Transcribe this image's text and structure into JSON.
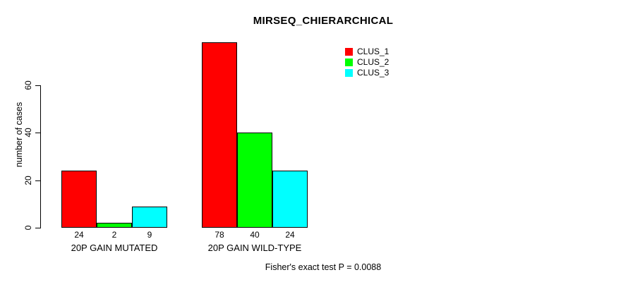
{
  "chart_data": {
    "type": "bar",
    "title": "MIRSEQ_CHIERARCHICAL",
    "ylabel": "number of cases",
    "xlabel": "",
    "categories": [
      "20P GAIN MUTATED",
      "20P GAIN WILD-TYPE"
    ],
    "series": [
      {
        "name": "CLUS_1",
        "color": "#ff0000",
        "values": [
          24,
          78
        ]
      },
      {
        "name": "CLUS_2",
        "color": "#00ff00",
        "values": [
          2,
          40
        ]
      },
      {
        "name": "CLUS_3",
        "color": "#00ffff",
        "values": [
          9,
          24
        ]
      }
    ],
    "bar_value_labels": [
      [
        24,
        2,
        9
      ],
      [
        78,
        40,
        24
      ]
    ],
    "yticks": [
      0,
      20,
      40,
      60
    ],
    "ylim": [
      0,
      78
    ],
    "grid": false,
    "legend_position": "top-right",
    "annotation": "Fisher's exact test P = 0.0088",
    "colors": {
      "background": "#ffffff",
      "axis": "#000000",
      "bar_border": "#000000"
    }
  }
}
